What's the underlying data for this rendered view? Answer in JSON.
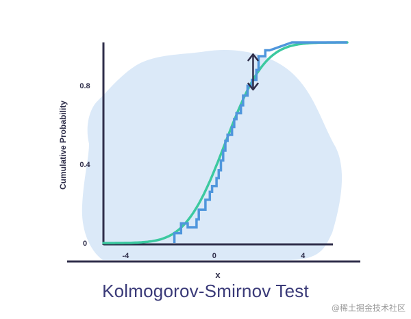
{
  "chart_data": {
    "type": "line",
    "title": "Kolmogorov-Smirnov Test",
    "xlabel": "x",
    "ylabel": "Cumulative Probability",
    "xlim": [
      -5,
      6
    ],
    "ylim": [
      0,
      1.02
    ],
    "x_ticks": [
      {
        "value": -4,
        "label": "-4"
      },
      {
        "value": 0,
        "label": "0"
      },
      {
        "value": 4,
        "label": "4"
      }
    ],
    "y_ticks": [
      {
        "value": 0,
        "label": "0"
      },
      {
        "value": 0.4,
        "label": "0.4"
      },
      {
        "value": 0.8,
        "label": "0.8"
      }
    ],
    "grid": false,
    "legend": "none",
    "series": [
      {
        "kind": "cdf-curve",
        "color": "#3cc9a0",
        "mean": 0.5,
        "sd": 1.4,
        "x_range": [
          -5,
          6
        ]
      },
      {
        "kind": "empirical-step",
        "color": "#4f96dc",
        "x": [
          -1.8,
          -1.8,
          -1.5,
          -1.5,
          -1.2,
          -1.2,
          -0.8,
          -0.8,
          -0.7,
          -0.7,
          -0.4,
          -0.4,
          -0.2,
          -0.2,
          -0.1,
          -0.1,
          0.1,
          0.1,
          0.2,
          0.2,
          0.3,
          0.3,
          0.4,
          0.4,
          0.5,
          0.5,
          0.6,
          0.6,
          0.8,
          0.8,
          0.9,
          0.9,
          1.0,
          1.0,
          1.2,
          1.2,
          1.3,
          1.3,
          1.5,
          1.5,
          1.7,
          1.7,
          1.9,
          1.9,
          2.0,
          2.0,
          2.3,
          2.3,
          2.5,
          2.5,
          3.5,
          3.5,
          6.0
        ],
        "y": [
          0.0,
          0.05,
          0.05,
          0.1,
          0.1,
          0.08,
          0.08,
          0.12,
          0.12,
          0.17,
          0.17,
          0.22,
          0.22,
          0.26,
          0.26,
          0.29,
          0.29,
          0.33,
          0.33,
          0.37,
          0.37,
          0.42,
          0.42,
          0.47,
          0.47,
          0.52,
          0.52,
          0.55,
          0.55,
          0.59,
          0.59,
          0.63,
          0.63,
          0.66,
          0.66,
          0.7,
          0.7,
          0.75,
          0.75,
          0.8,
          0.8,
          0.83,
          0.83,
          0.88,
          0.88,
          0.95,
          0.95,
          0.98,
          0.98,
          0.98,
          1.02,
          1.02,
          1.02
        ]
      }
    ],
    "annotations": [
      {
        "kind": "double-arrow",
        "color": "#2f2e4a",
        "x": 1.75,
        "y_top": 0.96,
        "y_bottom": 0.78
      }
    ]
  },
  "watermark": "@稀土掘金技术社区"
}
